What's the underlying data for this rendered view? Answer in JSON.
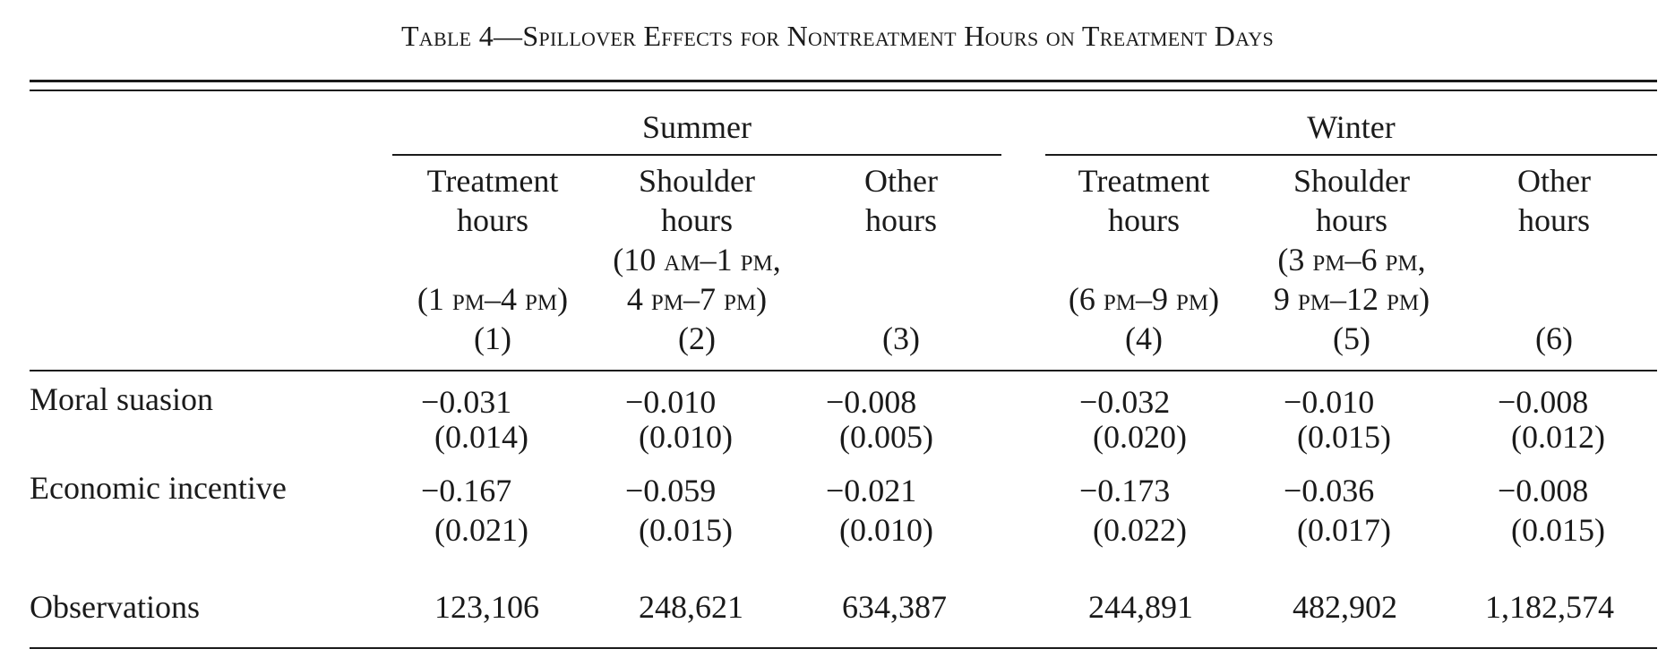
{
  "caption": "Table 4—Spillover Effects for Nontreatment Hours on Treatment Days",
  "groups": {
    "summer": "Summer",
    "winter": "Winter"
  },
  "columns": [
    {
      "l1": "Treatment",
      "l2": "hours",
      "t1": "",
      "t2": "(1 pm–4 pm)",
      "num": "(1)"
    },
    {
      "l1": "Shoulder",
      "l2": "hours",
      "t1": "(10 am–1 pm,",
      "t2": "4 pm–7 pm)",
      "num": "(2)"
    },
    {
      "l1": "Other",
      "l2": "hours",
      "t1": "",
      "t2": "",
      "num": "(3)"
    },
    {
      "l1": "Treatment",
      "l2": "hours",
      "t1": "",
      "t2": "(6 pm–9 pm)",
      "num": "(4)"
    },
    {
      "l1": "Shoulder",
      "l2": "hours",
      "t1": "(3 pm–6 pm,",
      "t2": "9 pm–12 pm)",
      "num": "(5)"
    },
    {
      "l1": "Other",
      "l2": "hours",
      "t1": "",
      "t2": "",
      "num": "(6)"
    }
  ],
  "rows": [
    {
      "label": "Moral suasion",
      "coef": [
        "−0.031",
        "−0.010",
        "−0.008",
        "−0.032",
        "−0.010",
        "−0.008"
      ],
      "se": [
        "(0.014)",
        "(0.010)",
        "(0.005)",
        "(0.020)",
        "(0.015)",
        "(0.012)"
      ]
    },
    {
      "label": "Economic incentive",
      "coef": [
        "−0.167",
        "−0.059",
        "−0.021",
        "−0.173",
        "−0.036",
        "−0.008"
      ],
      "se": [
        "(0.021)",
        "(0.015)",
        "(0.010)",
        "(0.022)",
        "(0.017)",
        "(0.015)"
      ]
    }
  ],
  "observations": {
    "label": "Observations",
    "values": [
      "123,106",
      "248,621",
      "634,387",
      "244,891",
      "482,902",
      "1,182,574"
    ]
  }
}
